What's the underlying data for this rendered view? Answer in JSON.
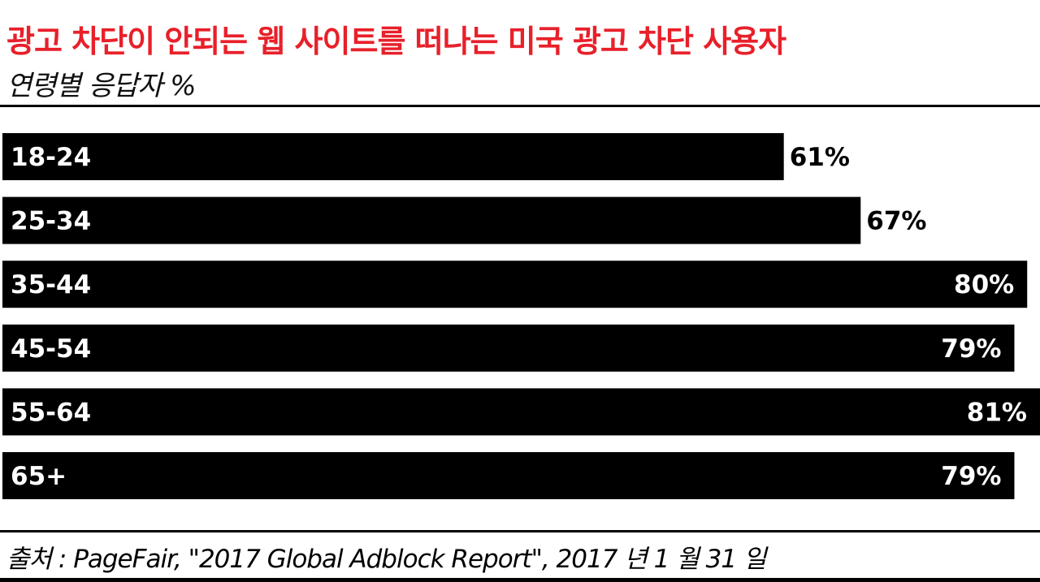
{
  "title": "광고 차단이 안되는 웹 사이트를 떠나는 미국 광고 차단 사용자",
  "subtitle": "연령별 응답자 %",
  "source": "출처 : PageFair, \"2017 Global Adblock Report\", 2017 년 1 월 31 일",
  "colors": {
    "title": "#e8202a",
    "bar": "#000000",
    "bar_label": "#ffffff",
    "value_outside": "#000000",
    "value_inside": "#ffffff"
  },
  "chart_data": {
    "type": "bar",
    "orientation": "horizontal",
    "categories": [
      "18-24",
      "25-34",
      "35-44",
      "45-54",
      "55-64",
      "65+"
    ],
    "values": [
      61,
      67,
      80,
      79,
      81,
      79
    ],
    "value_labels": [
      "61%",
      "67%",
      "80%",
      "79%",
      "81%",
      "79%"
    ],
    "title": "광고 차단이 안되는 웹 사이트를 떠나는 미국 광고 차단 사용자",
    "subtitle": "연령별 응답자 %",
    "xlim": [
      0,
      81
    ],
    "grid": false,
    "legend": "none"
  }
}
